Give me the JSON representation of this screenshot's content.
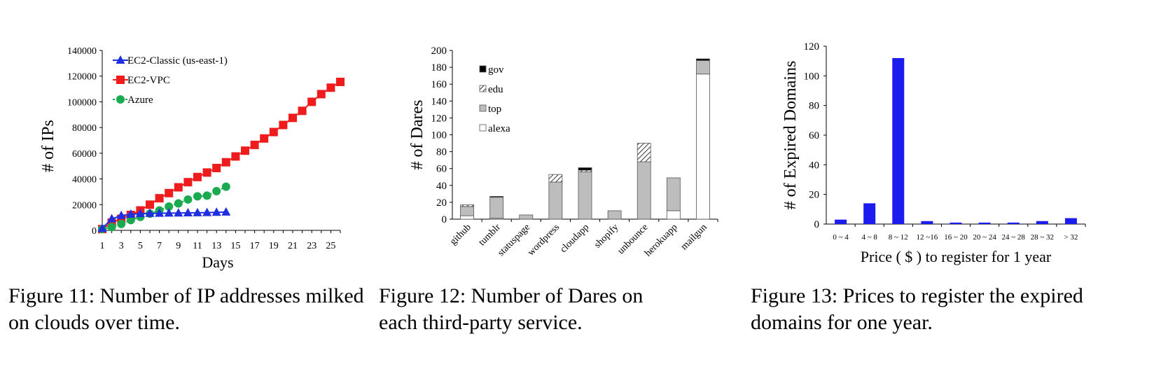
{
  "figures": [
    {
      "caption": {
        "number": "Figure 11:",
        "text": "Number of IP addresses milked on clouds over time."
      }
    },
    {
      "caption": {
        "number": "Figure 12:",
        "text": "Number of Dares on each third-party service."
      }
    },
    {
      "caption": {
        "number": "Figure 13:",
        "text": "Prices to register the expired domains for one year."
      }
    }
  ],
  "chart_data": [
    {
      "type": "line",
      "xlabel": "Days",
      "ylabel": "# of IPs",
      "xlim": [
        1,
        26
      ],
      "ylim": [
        0,
        140000
      ],
      "x_ticks": [
        "1",
        "3",
        "5",
        "7",
        "9",
        "11",
        "13",
        "15",
        "17",
        "19",
        "21",
        "23",
        "25"
      ],
      "y_ticks": [
        "0",
        "20000",
        "40000",
        "60000",
        "80000",
        "100000",
        "120000",
        "140000"
      ],
      "legend_position": "top-left",
      "series": [
        {
          "name": "EC2-Classic (us-east-1)",
          "color": "#1f2ee0",
          "marker": "triangle",
          "x": [
            1,
            2,
            3,
            4,
            5,
            6,
            7,
            8,
            9,
            10,
            11,
            12,
            13,
            14
          ],
          "y": [
            1500,
            9000,
            11500,
            12500,
            13000,
            13200,
            13300,
            13400,
            13500,
            13600,
            13700,
            13800,
            14000,
            14200
          ]
        },
        {
          "name": "EC2-VPC",
          "color": "#ee1c1c",
          "marker": "square",
          "x": [
            1,
            2,
            3,
            4,
            5,
            6,
            7,
            8,
            9,
            10,
            11,
            12,
            13,
            14,
            15,
            16,
            17,
            18,
            19,
            20,
            21,
            22,
            23,
            24,
            25,
            26
          ],
          "y": [
            1000,
            6000,
            9000,
            12000,
            15500,
            20000,
            25000,
            29000,
            33500,
            37500,
            41500,
            45000,
            48500,
            53000,
            57500,
            62000,
            66500,
            71500,
            76500,
            82000,
            87500,
            93000,
            100000,
            106000,
            111000,
            115500
          ]
        },
        {
          "name": "Azure",
          "color": "#1aab50",
          "marker": "circle",
          "x": [
            1,
            2,
            3,
            4,
            5,
            6,
            7,
            8,
            9,
            10,
            11,
            12,
            13,
            14
          ],
          "y": [
            1000,
            2500,
            5000,
            8000,
            10500,
            13000,
            15500,
            18500,
            21000,
            24000,
            26500,
            27000,
            30500,
            34000
          ]
        }
      ]
    },
    {
      "type": "bar",
      "stacked": true,
      "ylabel": "# of Dares",
      "ylim": [
        0,
        200
      ],
      "y_ticks": [
        "0",
        "20",
        "40",
        "60",
        "80",
        "100",
        "120",
        "140",
        "160",
        "180",
        "200"
      ],
      "categories": [
        "github",
        "tumblr",
        "statuspage",
        "wordpress",
        "cloudapp",
        "shopify",
        "unbounce",
        "herokuapp",
        "mailgun"
      ],
      "legend_position": "top-left",
      "series": [
        {
          "name": "alexa",
          "fill": "#ffffff",
          "values": [
            4,
            1,
            0,
            0,
            0,
            0,
            0,
            10,
            172
          ]
        },
        {
          "name": "top",
          "fill": "#bdbdbd",
          "values": [
            11,
            25,
            5,
            44,
            56,
            10,
            68,
            39,
            16
          ]
        },
        {
          "name": "edu",
          "fill": "hatch",
          "values": [
            2,
            0,
            0,
            9,
            2,
            0,
            22,
            0,
            0
          ]
        },
        {
          "name": "gov",
          "fill": "#000000",
          "values": [
            0,
            1,
            0,
            0,
            3,
            0,
            0,
            0,
            2
          ]
        }
      ]
    },
    {
      "type": "bar",
      "xlabel": "Price ( $ ) to register for 1 year",
      "ylabel": "# of Expired  Domains",
      "ylim": [
        0,
        120
      ],
      "y_ticks": [
        "0",
        "20",
        "40",
        "60",
        "80",
        "100",
        "120"
      ],
      "categories": [
        "0 ~ 4",
        "4 ~ 8",
        "8 ~ 12",
        "12 ~16",
        "16 ~ 20",
        "20 ~ 24",
        "24 ~ 28",
        "28 ~ 32",
        "> 32"
      ],
      "values": [
        3,
        14,
        112,
        2,
        1,
        1,
        1,
        2,
        4
      ],
      "color": "#1c1cee"
    }
  ]
}
